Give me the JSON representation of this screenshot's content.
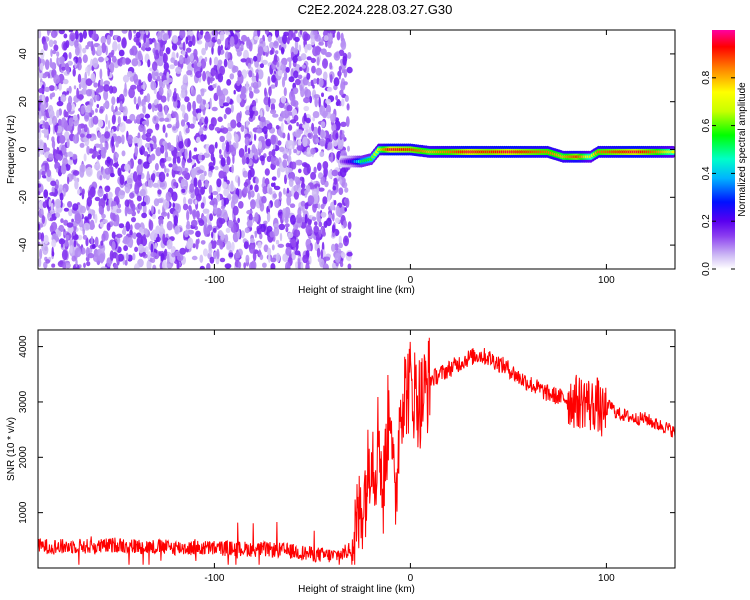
{
  "chart_data": [
    {
      "type": "heatmap",
      "title": "C2E2.2024.228.03.27.G30",
      "xlabel": "Height of straight line (km)",
      "ylabel": "Frequency (Hz)",
      "xlim": [
        -190,
        135
      ],
      "ylim": [
        -50,
        50
      ],
      "x_ticks": [
        -100,
        0,
        100
      ],
      "y_ticks": [
        -40,
        -20,
        0,
        20,
        40
      ],
      "colorbar": {
        "label": "Normalized spectral amplitude",
        "range": [
          0,
          1
        ],
        "ticks": [
          0.0,
          0.2,
          0.4,
          0.6,
          0.8
        ],
        "colormap": [
          "#ffffff",
          "#cbb6f4",
          "#8a3cf0",
          "#5a00f0",
          "#0010ff",
          "#00b4ff",
          "#00ffc8",
          "#00ff00",
          "#c8ff00",
          "#ffff00",
          "#ff8000",
          "#ff0000",
          "#ff00a0"
        ]
      },
      "noise_region": {
        "x_range": [
          -190,
          -35
        ],
        "dominant_color": "#6b00f0"
      },
      "signal_track": [
        {
          "x": -35,
          "freq": -5,
          "amp": 0.15
        },
        {
          "x": -30,
          "freq": -5,
          "amp": 0.3
        },
        {
          "x": -25,
          "freq": -5,
          "amp": 0.55
        },
        {
          "x": -20,
          "freq": -4,
          "amp": 0.6
        },
        {
          "x": -16,
          "freq": 0,
          "amp": 0.75
        },
        {
          "x": -10,
          "freq": 0,
          "amp": 0.95
        },
        {
          "x": 0,
          "freq": 0,
          "amp": 0.9
        },
        {
          "x": 10,
          "freq": -1,
          "amp": 0.8
        },
        {
          "x": 20,
          "freq": -1,
          "amp": 0.85
        },
        {
          "x": 30,
          "freq": -1,
          "amp": 0.95
        },
        {
          "x": 40,
          "freq": -1,
          "amp": 0.9
        },
        {
          "x": 50,
          "freq": -1,
          "amp": 0.95
        },
        {
          "x": 60,
          "freq": -1,
          "amp": 0.9
        },
        {
          "x": 70,
          "freq": -1,
          "amp": 0.85
        },
        {
          "x": 78,
          "freq": -3,
          "amp": 0.8
        },
        {
          "x": 85,
          "freq": -3,
          "amp": 0.9
        },
        {
          "x": 92,
          "freq": -3,
          "amp": 0.7
        },
        {
          "x": 96,
          "freq": -1,
          "amp": 0.85
        },
        {
          "x": 105,
          "freq": -1,
          "amp": 0.9
        },
        {
          "x": 115,
          "freq": -1,
          "amp": 0.95
        },
        {
          "x": 125,
          "freq": -1,
          "amp": 0.85
        },
        {
          "x": 135,
          "freq": -1,
          "amp": 0.7
        }
      ]
    },
    {
      "type": "line",
      "xlabel": "Height of straight line (km)",
      "ylabel": "SNR (10 * v/v)",
      "xlim": [
        -190,
        135
      ],
      "ylim": [
        0,
        4300
      ],
      "x_ticks": [
        -100,
        0,
        100
      ],
      "y_ticks": [
        1000,
        2000,
        3000,
        4000
      ],
      "color": "#ff0000",
      "series": [
        {
          "x": [
            -190,
            -180,
            -170,
            -160,
            -150,
            -140,
            -130,
            -120,
            -110,
            -100,
            -90,
            -80,
            -70,
            -60,
            -50,
            -40,
            -35,
            -30,
            -25,
            -22,
            -20,
            -18,
            -16,
            -14,
            -12,
            -10,
            -8,
            -5,
            0,
            5,
            10,
            15,
            20,
            25,
            30,
            35,
            40,
            45,
            50,
            55,
            60,
            65,
            70,
            75,
            80,
            85,
            88,
            90,
            92,
            95,
            98,
            100,
            102,
            105,
            110,
            115,
            120,
            125,
            130,
            135
          ],
          "y": [
            400,
            380,
            400,
            380,
            420,
            390,
            380,
            370,
            360,
            360,
            350,
            340,
            330,
            300,
            250,
            220,
            250,
            350,
            1100,
            1600,
            2300,
            1800,
            2600,
            1200,
            2400,
            3200,
            900,
            3100,
            3300,
            3000,
            3400,
            3500,
            3600,
            3700,
            3800,
            3850,
            3800,
            3700,
            3600,
            3450,
            3350,
            3250,
            3150,
            3100,
            3050,
            3000,
            3000,
            3050,
            2900,
            3000,
            2750,
            2850,
            2950,
            2800,
            2750,
            2700,
            2700,
            2600,
            2550,
            2450
          ]
        }
      ]
    }
  ]
}
